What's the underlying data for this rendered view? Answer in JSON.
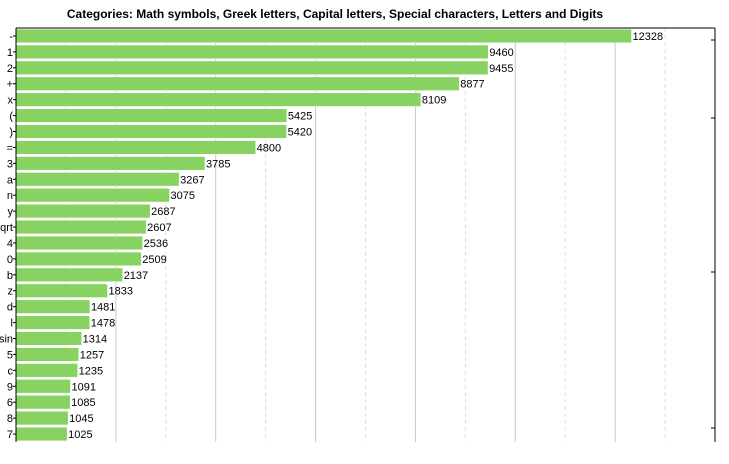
{
  "chart_data": {
    "type": "bar",
    "orientation": "horizontal",
    "title": "Categories: Math symbols, Greek letters, Capital letters, Special characters, Letters and Digits",
    "xlabel": "",
    "ylabel": "",
    "xlim": [
      0,
      14000
    ],
    "grid": true,
    "legend": "none",
    "bar_color": "#88d262",
    "categories": [
      "-",
      "1",
      "2",
      "+",
      "x",
      "(",
      ")",
      "=",
      "3",
      "a",
      "n",
      "y",
      "qrt",
      "4",
      "0",
      "b",
      "z",
      "d",
      "l",
      "sin",
      "5",
      "c",
      "9",
      "6",
      "8",
      "7"
    ],
    "values": [
      12328,
      9460,
      9455,
      8877,
      8109,
      5425,
      5420,
      4800,
      3785,
      3267,
      3075,
      2687,
      2607,
      2536,
      2509,
      2137,
      1833,
      1481,
      1478,
      1314,
      1257,
      1235,
      1091,
      1085,
      1045,
      1025
    ]
  }
}
